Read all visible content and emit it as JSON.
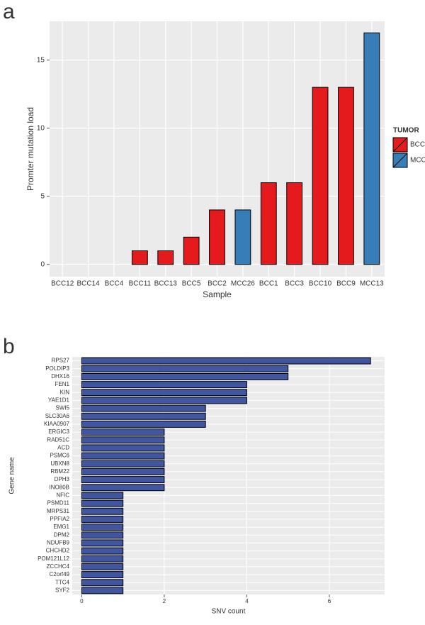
{
  "chart_data": [
    {
      "type": "bar",
      "panel_label": "a",
      "x_label": "Sample",
      "y_label": "Promter mutation load",
      "categories": [
        "BCC12",
        "BCC14",
        "BCC4",
        "BCC11",
        "BCC13",
        "BCC5",
        "BCC2",
        "MCC26",
        "BCC1",
        "BCC3",
        "BCC10",
        "BCC9",
        "MCC13"
      ],
      "series": [
        {
          "name": "BCC",
          "color": "#e41a1c",
          "values": [
            0,
            0,
            0,
            1,
            1,
            2,
            4,
            null,
            6,
            6,
            13,
            13,
            null
          ]
        },
        {
          "name": "MCC",
          "color": "#377eb8",
          "values": [
            null,
            null,
            null,
            null,
            null,
            null,
            null,
            4,
            null,
            null,
            null,
            null,
            17
          ]
        }
      ],
      "legend_title": "TUMOR",
      "legend": "right",
      "ylim": [
        -0.9,
        17.85
      ],
      "yticks": [
        0,
        5,
        10,
        15
      ],
      "grid": true
    },
    {
      "type": "hbar",
      "panel_label": "b",
      "x_label": "SNV count",
      "y_label": "Gene name",
      "categories": [
        "RPS27",
        "POLDIP3",
        "DHX16",
        "FEN1",
        "KIN",
        "YAE1D1",
        "SWI5",
        "SLC30A6",
        "KIAA0907",
        "ERGIC3",
        "RAD51C",
        "ACD",
        "PSMC6",
        "UBXN8",
        "RBM22",
        "DPH3",
        "INO80B",
        "NFIC",
        "PSMD11",
        "MRPS31",
        "PPFIA2",
        "EMG1",
        "DPM2",
        "NDUFB9",
        "CHCHD2",
        "POM121L12",
        "ZCCHC4",
        "C2orf49",
        "TTC4",
        "SYF2"
      ],
      "values": [
        7,
        5,
        5,
        4,
        4,
        4,
        3,
        3,
        3,
        2,
        2,
        2,
        2,
        2,
        2,
        2,
        2,
        1,
        1,
        1,
        1,
        1,
        1,
        1,
        1,
        1,
        1,
        1,
        1,
        1
      ],
      "color": "#4056a1",
      "xlim": [
        -0.23,
        7.34
      ],
      "xticks": [
        0,
        2,
        4,
        6
      ],
      "grid": true
    }
  ]
}
